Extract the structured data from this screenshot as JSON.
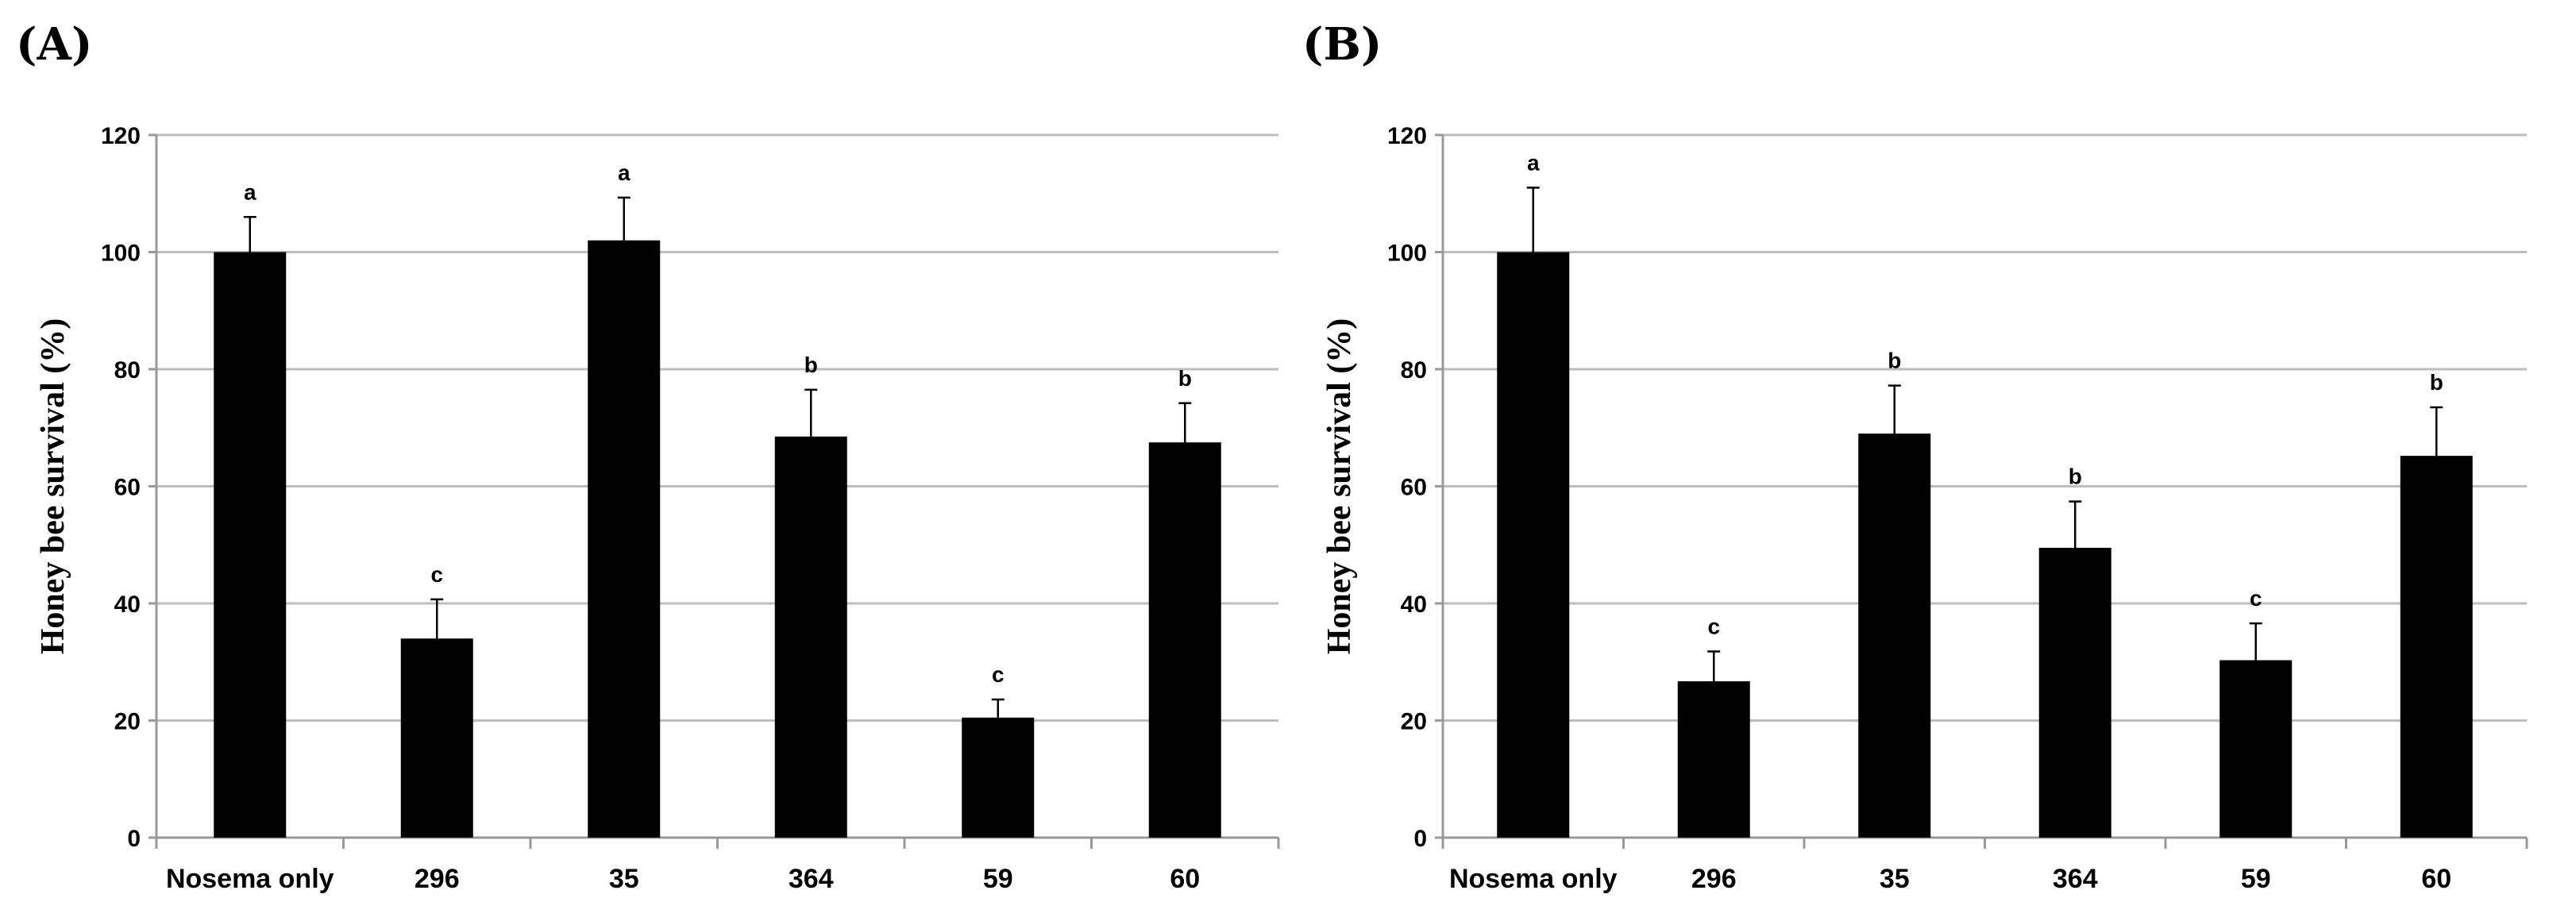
{
  "chart_data": [
    {
      "type": "bar",
      "panel_label": "(A)",
      "categories": [
        "Nosema only",
        "296",
        "35",
        "364",
        "59",
        "60"
      ],
      "values": [
        100,
        34,
        102,
        68.5,
        20.5,
        67.5
      ],
      "error_upper": [
        106,
        40.7,
        109.3,
        76.5,
        23.6,
        74.2
      ],
      "significance_letters": [
        "a",
        "c",
        "a",
        "b",
        "c",
        "b"
      ],
      "ylabel": "Honey bee survival (%)",
      "xlabel": "",
      "ylim": [
        0,
        120
      ],
      "yticks": [
        0,
        20,
        40,
        60,
        80,
        100,
        120
      ],
      "grid": true,
      "bar_color": "#000000"
    },
    {
      "type": "bar",
      "panel_label": "(B)",
      "categories": [
        "Nosema only",
        "296",
        "35",
        "364",
        "59",
        "60"
      ],
      "values": [
        100,
        26.7,
        69,
        49.5,
        30.3,
        65.2
      ],
      "error_upper": [
        111,
        31.8,
        77.2,
        57.4,
        36.6,
        73.5
      ],
      "significance_letters": [
        "a",
        "c",
        "b",
        "b",
        "c",
        "b"
      ],
      "ylabel": "Honey bee survival (%)",
      "xlabel": "",
      "ylim": [
        0,
        120
      ],
      "yticks": [
        0,
        20,
        40,
        60,
        80,
        100,
        120
      ],
      "grid": true,
      "bar_color": "#000000"
    }
  ]
}
